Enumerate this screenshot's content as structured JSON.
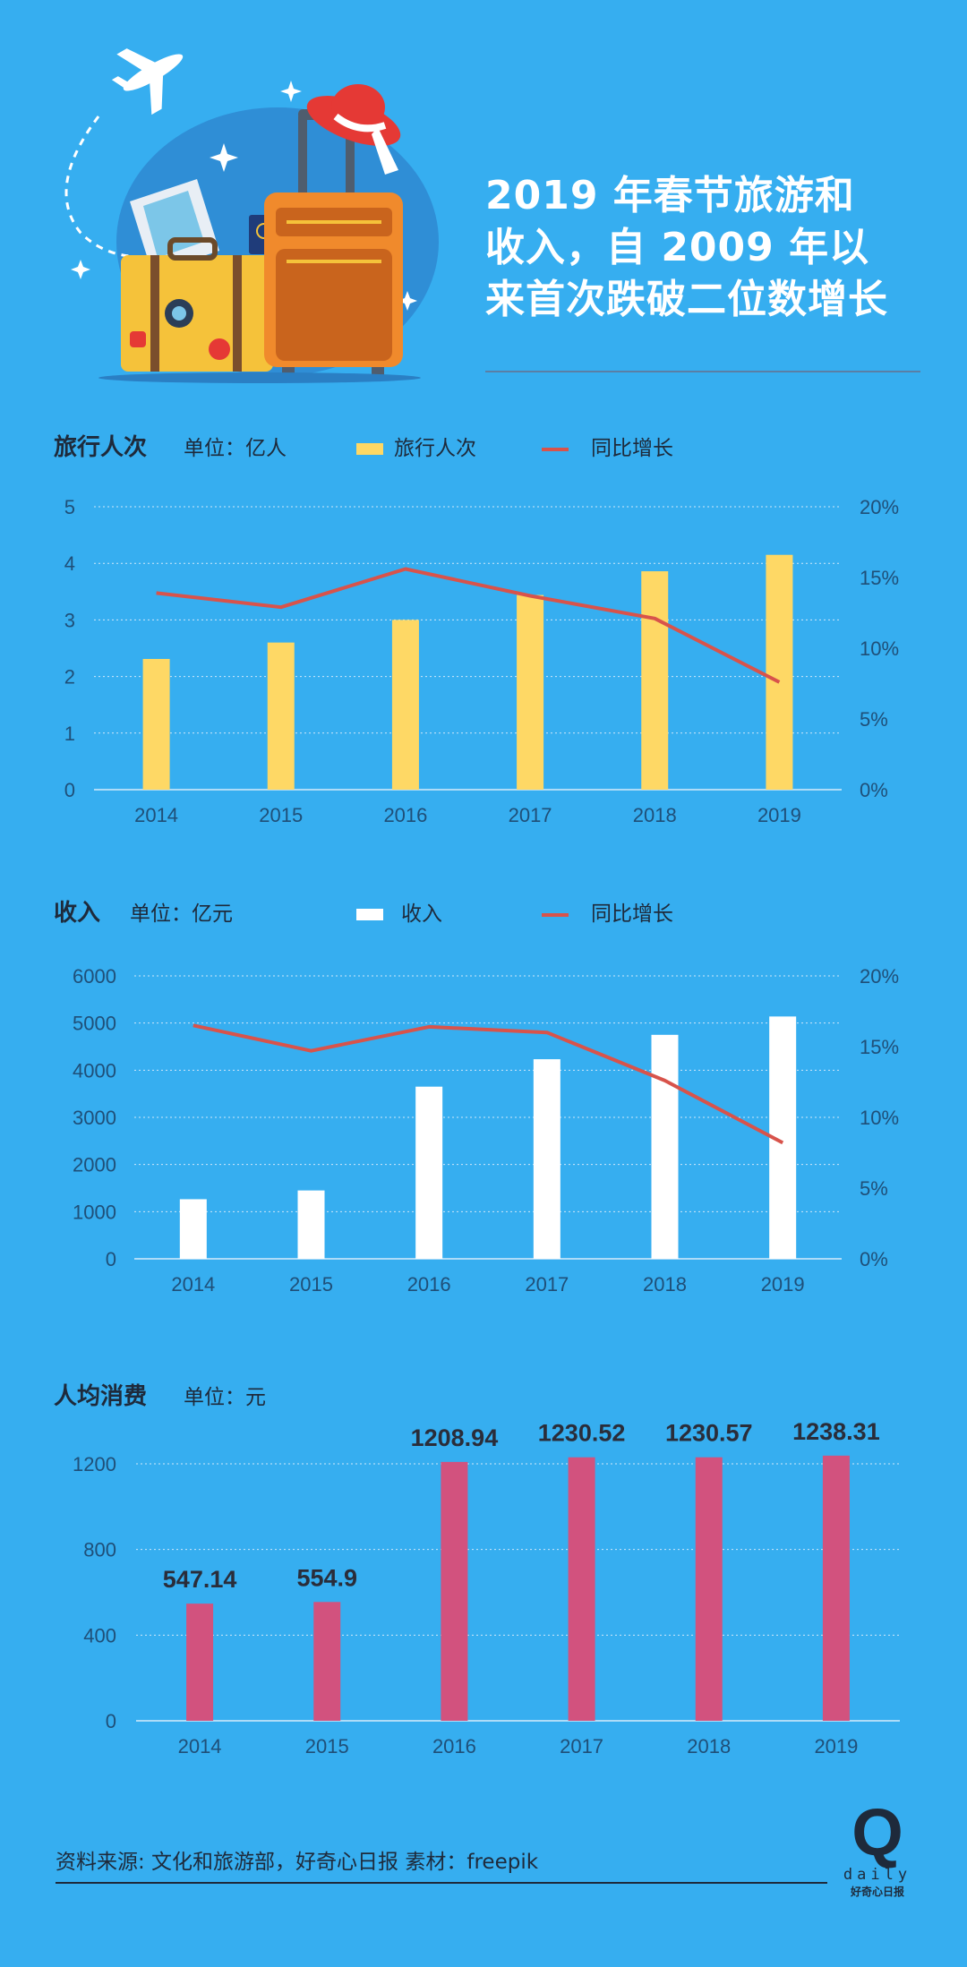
{
  "title": "2019 年春节旅游和收入，自 2009 年以来首次跌破二位数增长",
  "title_lines": [
    "2019 年春节旅游和",
    "收入，自 2009 年以",
    "来首次跌破二位数增长"
  ],
  "colors": {
    "background": "#36aef0",
    "trips_bar": "#fed865",
    "revenue_bar": "#ffffff",
    "spend_bar": "#d2527e",
    "growth_line": "#d8534b",
    "text_dark": "#1e2a3b"
  },
  "chart_data": [
    {
      "type": "bar",
      "title": "旅行人次",
      "unit": "单位：亿人",
      "categories": [
        "2014",
        "2015",
        "2016",
        "2017",
        "2018",
        "2019"
      ],
      "series": [
        {
          "name": "旅行人次",
          "type": "bar",
          "values": [
            2.31,
            2.6,
            3.0,
            3.44,
            3.86,
            4.15
          ]
        },
        {
          "name": "同比增长",
          "type": "line",
          "axis": "right",
          "values": [
            13.9,
            12.9,
            15.6,
            13.7,
            12.1,
            7.6
          ]
        }
      ],
      "ylim": [
        0,
        5
      ],
      "yticks": [
        "0",
        "1",
        "2",
        "3",
        "4",
        "5"
      ],
      "y2lim": [
        0,
        20
      ],
      "y2ticks": [
        "0%",
        "5%",
        "10%",
        "15%",
        "20%"
      ],
      "grid": true,
      "legend_position": "top"
    },
    {
      "type": "bar",
      "title": "收入",
      "unit": "单位：亿元",
      "categories": [
        "2014",
        "2015",
        "2016",
        "2017",
        "2018",
        "2019"
      ],
      "series": [
        {
          "name": "收入",
          "type": "bar",
          "values": [
            1264,
            1450,
            3651,
            4233,
            4750,
            5139
          ]
        },
        {
          "name": "同比增长",
          "type": "line",
          "axis": "right",
          "values": [
            16.5,
            14.7,
            16.4,
            16.0,
            12.6,
            8.2
          ]
        }
      ],
      "ylim": [
        0,
        6000
      ],
      "yticks": [
        "0",
        "1000",
        "2000",
        "3000",
        "4000",
        "5000",
        "6000"
      ],
      "y2lim": [
        0,
        20
      ],
      "y2ticks": [
        "0%",
        "5%",
        "10%",
        "15%",
        "20%"
      ],
      "grid": true,
      "legend_position": "top"
    },
    {
      "type": "bar",
      "title": "人均消费",
      "unit": "单位：元",
      "categories": [
        "2014",
        "2015",
        "2016",
        "2017",
        "2018",
        "2019"
      ],
      "series": [
        {
          "name": "人均消费",
          "type": "bar",
          "values": [
            547.14,
            554.9,
            1208.94,
            1230.52,
            1230.57,
            1238.31
          ]
        }
      ],
      "data_labels": [
        "547.14",
        "554.9",
        "1208.94",
        "1230.52",
        "1230.57",
        "1238.31"
      ],
      "ylim": [
        0,
        1200
      ],
      "yticks": [
        "0",
        "400",
        "800",
        "1200"
      ],
      "grid": true
    }
  ],
  "source": "资料来源: 文化和旅游部，好奇心日报      素材：freepik",
  "logo": {
    "letter": "Q",
    "word": "daily",
    "sub": "好奇心日报"
  }
}
